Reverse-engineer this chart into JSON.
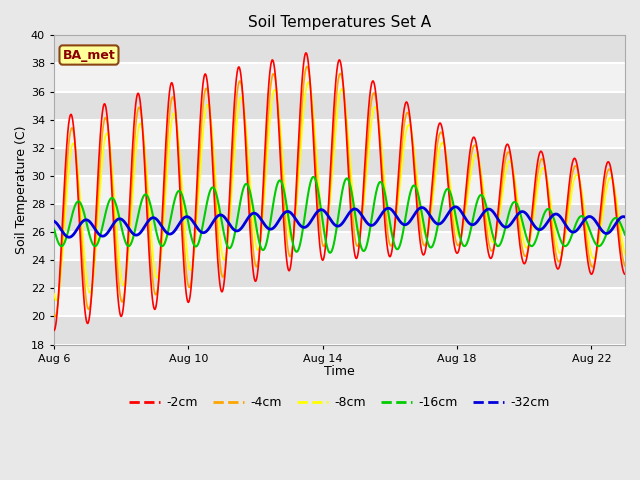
{
  "title": "Soil Temperatures Set A",
  "xlabel": "Time",
  "ylabel": "Soil Temperature (C)",
  "ylim": [
    18,
    40
  ],
  "yticks": [
    18,
    20,
    22,
    24,
    26,
    28,
    30,
    32,
    34,
    36,
    38,
    40
  ],
  "xtick_labels": [
    "Aug 6",
    "Aug 10",
    "Aug 14",
    "Aug 18",
    "Aug 22"
  ],
  "xtick_positions": [
    0,
    4,
    8,
    12,
    16
  ],
  "annotation_text": "BA_met",
  "fig_bg_color": "#e8e8e8",
  "plot_bg_color": "#f2f2f2",
  "band_colors": [
    "#e0e0e0",
    "#f2f2f2"
  ],
  "colors": {
    "-2cm": "#ff0000",
    "-4cm": "#ffa500",
    "-8cm": "#ffff00",
    "-16cm": "#00cc00",
    "-32cm": "#0000dd"
  },
  "legend_colors": [
    "#ff0000",
    "#ffa500",
    "#ffff00",
    "#00cc00",
    "#0000dd"
  ],
  "legend_labels": [
    "-2cm",
    "-4cm",
    "-8cm",
    "-16cm",
    "-32cm"
  ],
  "xlim": [
    0,
    17
  ]
}
